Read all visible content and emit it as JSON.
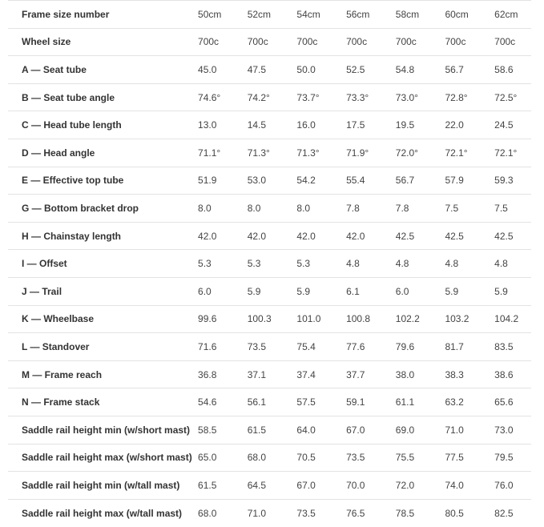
{
  "geometry_table": {
    "rows": [
      {
        "label": "Frame size number",
        "values": [
          "50cm",
          "52cm",
          "54cm",
          "56cm",
          "58cm",
          "60cm",
          "62cm"
        ]
      },
      {
        "label": "Wheel size",
        "values": [
          "700c",
          "700c",
          "700c",
          "700c",
          "700c",
          "700c",
          "700c"
        ]
      },
      {
        "label": "A — Seat tube",
        "values": [
          "45.0",
          "47.5",
          "50.0",
          "52.5",
          "54.8",
          "56.7",
          "58.6"
        ]
      },
      {
        "label": "B — Seat tube angle",
        "values": [
          "74.6°",
          "74.2°",
          "73.7°",
          "73.3°",
          "73.0°",
          "72.8°",
          "72.5°"
        ]
      },
      {
        "label": "C — Head tube length",
        "values": [
          "13.0",
          "14.5",
          "16.0",
          "17.5",
          "19.5",
          "22.0",
          "24.5"
        ]
      },
      {
        "label": "D — Head angle",
        "values": [
          "71.1°",
          "71.3°",
          "71.3°",
          "71.9°",
          "72.0°",
          "72.1°",
          "72.1°"
        ]
      },
      {
        "label": "E — Effective top tube",
        "values": [
          "51.9",
          "53.0",
          "54.2",
          "55.4",
          "56.7",
          "57.9",
          "59.3"
        ]
      },
      {
        "label": "G — Bottom bracket drop",
        "values": [
          "8.0",
          "8.0",
          "8.0",
          "7.8",
          "7.8",
          "7.5",
          "7.5"
        ]
      },
      {
        "label": "H — Chainstay length",
        "values": [
          "42.0",
          "42.0",
          "42.0",
          "42.0",
          "42.5",
          "42.5",
          "42.5"
        ]
      },
      {
        "label": "I — Offset",
        "values": [
          "5.3",
          "5.3",
          "5.3",
          "4.8",
          "4.8",
          "4.8",
          "4.8"
        ]
      },
      {
        "label": "J — Trail",
        "values": [
          "6.0",
          "5.9",
          "5.9",
          "6.1",
          "6.0",
          "5.9",
          "5.9"
        ]
      },
      {
        "label": "K — Wheelbase",
        "values": [
          "99.6",
          "100.3",
          "101.0",
          "100.8",
          "102.2",
          "103.2",
          "104.2"
        ]
      },
      {
        "label": "L — Standover",
        "values": [
          "71.6",
          "73.5",
          "75.4",
          "77.6",
          "79.6",
          "81.7",
          "83.5"
        ]
      },
      {
        "label": "M — Frame reach",
        "values": [
          "36.8",
          "37.1",
          "37.4",
          "37.7",
          "38.0",
          "38.3",
          "38.6"
        ]
      },
      {
        "label": "N — Frame stack",
        "values": [
          "54.6",
          "56.1",
          "57.5",
          "59.1",
          "61.1",
          "63.2",
          "65.6"
        ]
      },
      {
        "label": "Saddle rail height min (w/short mast)",
        "values": [
          "58.5",
          "61.5",
          "64.0",
          "67.0",
          "69.0",
          "71.0",
          "73.0"
        ]
      },
      {
        "label": "Saddle rail height max (w/short mast)",
        "values": [
          "65.0",
          "68.0",
          "70.5",
          "73.5",
          "75.5",
          "77.5",
          "79.5"
        ]
      },
      {
        "label": "Saddle rail height min (w/tall mast)",
        "values": [
          "61.5",
          "64.5",
          "67.0",
          "70.0",
          "72.0",
          "74.0",
          "76.0"
        ]
      },
      {
        "label": "Saddle rail height max (w/tall mast)",
        "values": [
          "68.0",
          "71.0",
          "73.5",
          "76.5",
          "78.5",
          "80.5",
          "82.5"
        ]
      }
    ]
  }
}
